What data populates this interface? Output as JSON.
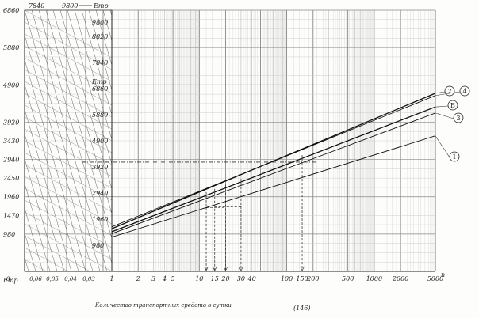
{
  "chart_data": {
    "type": "line",
    "x_scale": "log",
    "xlim": [
      1,
      5000
    ],
    "x_ticks": [
      {
        "v": 1,
        "l": "1"
      },
      {
        "v": 2,
        "l": "2"
      },
      {
        "v": 3,
        "l": "3"
      },
      {
        "v": 4,
        "l": "4"
      },
      {
        "v": 5,
        "l": "5"
      },
      {
        "v": 10,
        "l": "10"
      },
      {
        "v": 15,
        "l": "15"
      },
      {
        "v": 20,
        "l": "20"
      },
      {
        "v": 30,
        "l": "30"
      },
      {
        "v": 40,
        "l": "40"
      },
      {
        "v": 100,
        "l": "100"
      },
      {
        "v": 150,
        "l": "150"
      },
      {
        "v": 200,
        "l": "200"
      },
      {
        "v": 500,
        "l": "500"
      },
      {
        "v": 1000,
        "l": "1000"
      },
      {
        "v": 2000,
        "l": "2000"
      },
      {
        "v": 5000,
        "l": "5000"
      }
    ],
    "x_axis_end_label": "n",
    "xlabel": "Количество транспортных средств в сутки",
    "page_mark": "(146)",
    "ylim": [
      0,
      6860
    ],
    "y_outer_ticks": [
      980,
      1470,
      1960,
      2450,
      2940,
      3430,
      3920,
      4900,
      5880,
      6860
    ],
    "y_outer_labels": [
      "980",
      "1470",
      "1960",
      "2450",
      "2940",
      "3430",
      "3920",
      "4900",
      "5880",
      "6860"
    ],
    "y_inner_ticks": [
      980,
      1960,
      2940,
      3920,
      4900,
      5880,
      6860,
      7840,
      8820,
      9800
    ],
    "y_inner_labels": [
      "980",
      "1960",
      "2940",
      "3920",
      "4900",
      "5880",
      "6860",
      "7840",
      "8820",
      "9800"
    ],
    "y_inner_max": 9800,
    "y_axis_symbol": "Eтр",
    "top_labels": [
      "7840",
      "9800"
    ],
    "side_ticks": [
      "0,06",
      "0,05",
      "0,04",
      "0,03"
    ],
    "side_origin": "0",
    "series": [
      {
        "name": "1",
        "x": [
          1,
          5000
        ],
        "y": [
          900,
          3560
        ]
      },
      {
        "name": "3",
        "x": [
          1,
          5000
        ],
        "y": [
          990,
          4160
        ]
      },
      {
        "name": "Б",
        "x": [
          1,
          5000
        ],
        "y": [
          1040,
          4320
        ]
      },
      {
        "name": "2",
        "x": [
          1,
          5000
        ],
        "y": [
          1120,
          4680
        ]
      },
      {
        "name": "4",
        "x": [
          1,
          5000
        ],
        "y": [
          1170,
          4620
        ]
      }
    ],
    "guide_x_values": [
      12,
      15,
      20,
      30,
      150
    ],
    "guide_level": 2870
  }
}
